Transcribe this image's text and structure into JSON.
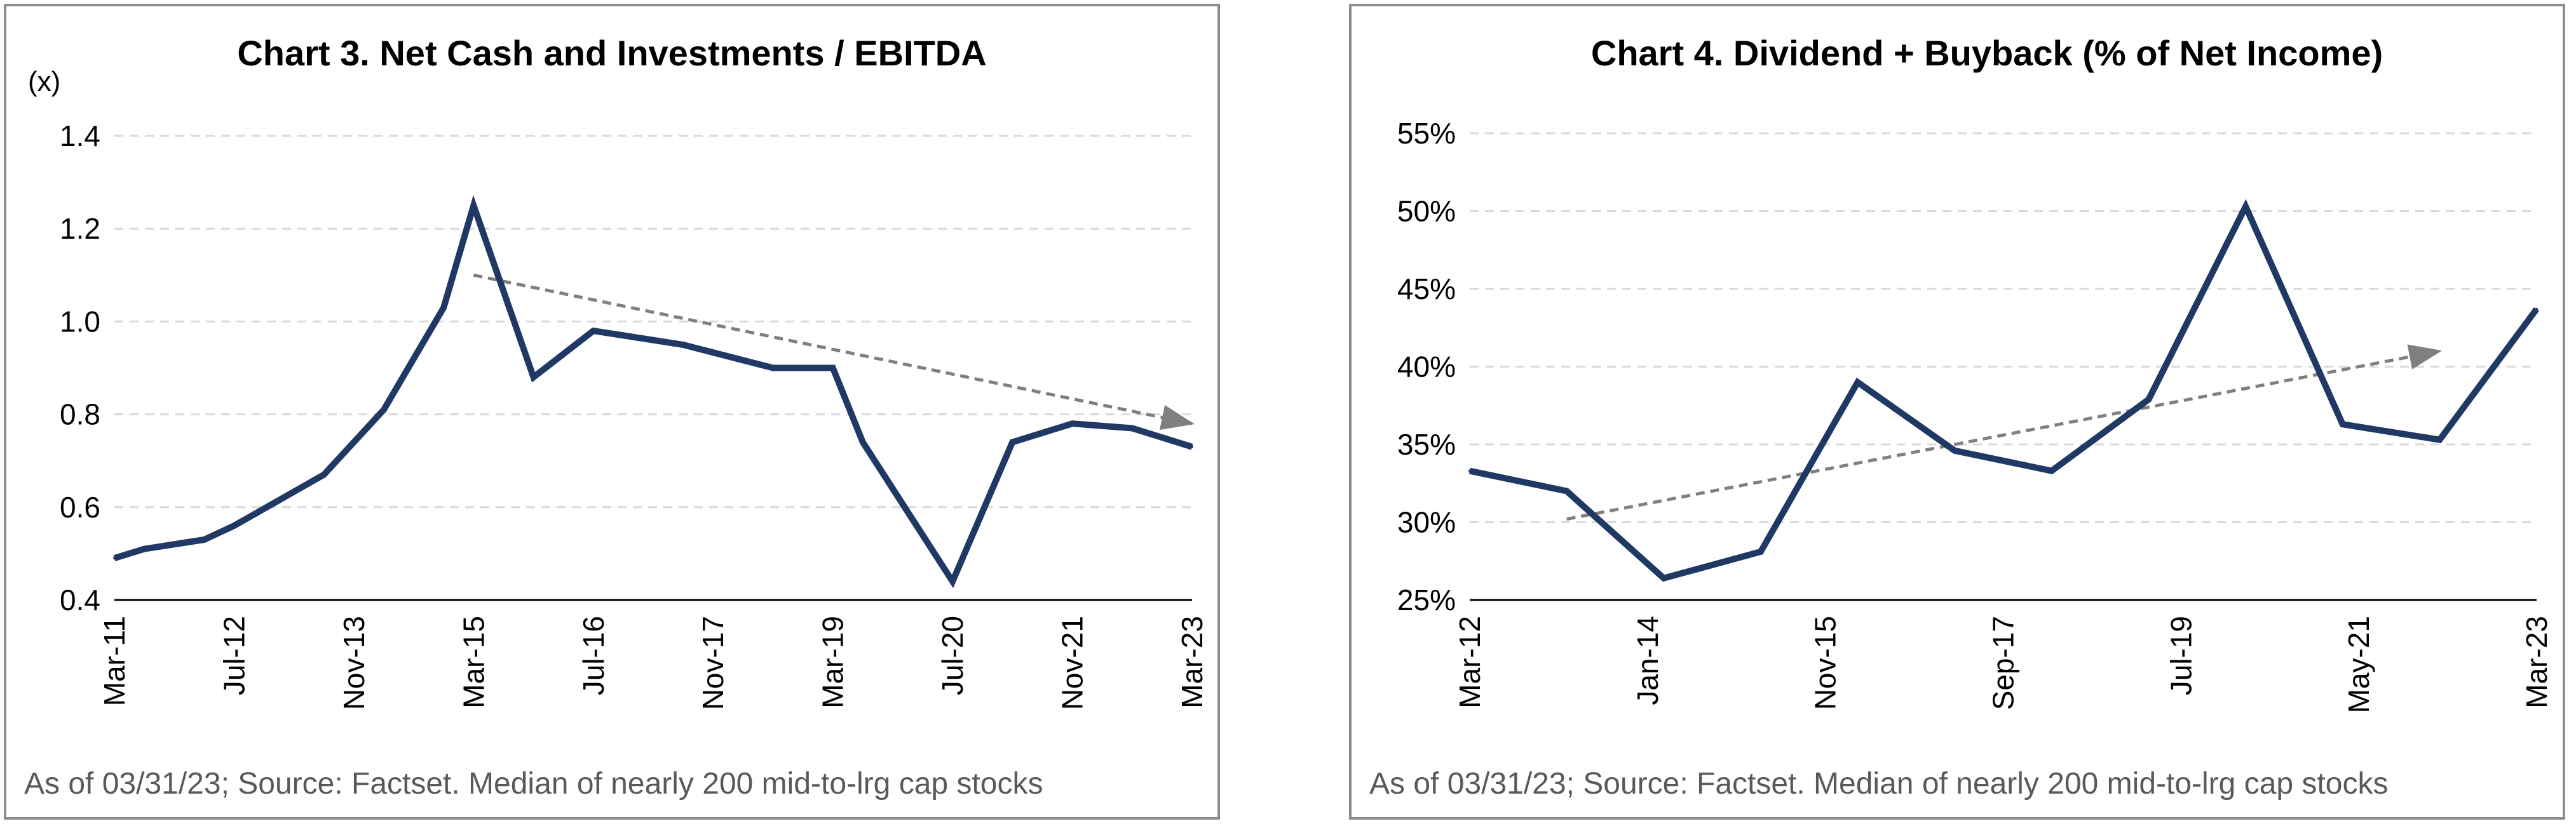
{
  "charts": [
    {
      "title": "Chart 3. Net Cash and Investments / EBITDA",
      "unit_label": "(x)",
      "source": "As of 03/31/23; Source: Factset. Median of nearly 200 mid-to-lrg cap stocks",
      "y_ticks": [
        "1.4",
        "1.2",
        "1.0",
        "0.8",
        "0.6",
        "0.4"
      ],
      "x_ticks": [
        "Mar-11",
        "Jul-12",
        "Nov-13",
        "Mar-15",
        "Jul-16",
        "Nov-17",
        "Mar-19",
        "Jul-20",
        "Nov-21",
        "Mar-23"
      ]
    },
    {
      "title": "Chart 4. Dividend + Buyback (% of Net Income)",
      "source": "As of 03/31/23; Source: Factset. Median of nearly 200 mid-to-lrg cap stocks",
      "y_ticks": [
        "55%",
        "50%",
        "45%",
        "40%",
        "35%",
        "30%",
        "25%"
      ],
      "x_ticks": [
        "Mar-12",
        "Jan-14",
        "Nov-15",
        "Sep-17",
        "Jul-19",
        "May-21",
        "Mar-23"
      ]
    }
  ],
  "chart_data": [
    {
      "type": "line",
      "title": "Chart 3. Net Cash and Investments / EBITDA",
      "ylabel": "(x)",
      "xlabel": "",
      "ylim": [
        0.4,
        1.4
      ],
      "grid": true,
      "line_color": "#1f3864",
      "trend_color": "#7f7f7f",
      "x": [
        "Mar-11",
        "Jul-11",
        "Mar-12",
        "Jul-12",
        "Jul-13",
        "Mar-14",
        "Nov-14",
        "Mar-15",
        "Nov-15",
        "Jul-16",
        "Jul-17",
        "Jul-18",
        "Mar-19",
        "Jul-19",
        "Jul-20",
        "Mar-21",
        "Nov-21",
        "Jul-22",
        "Mar-23"
      ],
      "series": [
        {
          "values": [
            0.49,
            0.51,
            0.53,
            0.56,
            0.67,
            0.81,
            1.03,
            1.25,
            0.88,
            0.98,
            0.95,
            0.9,
            0.9,
            0.74,
            0.44,
            0.74,
            0.78,
            0.77,
            0.73
          ]
        }
      ],
      "trend_line": {
        "x": [
          "Mar-15",
          "Mar-23"
        ],
        "y": [
          1.1,
          0.78
        ]
      },
      "x_tick_labels": [
        "Mar-11",
        "Jul-12",
        "Nov-13",
        "Mar-15",
        "Jul-16",
        "Nov-17",
        "Mar-19",
        "Jul-20",
        "Nov-21",
        "Mar-23"
      ],
      "y_tick_labels": [
        "0.4",
        "0.6",
        "0.8",
        "1.0",
        "1.2",
        "1.4"
      ]
    },
    {
      "type": "line",
      "title": "Chart 4. Dividend + Buyback (% of Net Income)",
      "xlabel": "",
      "ylabel": "",
      "ylim": [
        25,
        55
      ],
      "grid": true,
      "line_color": "#1f3864",
      "trend_color": "#7f7f7f",
      "x": [
        "Mar-12",
        "Mar-13",
        "Mar-14",
        "Mar-15",
        "Mar-16",
        "Mar-17",
        "Mar-18",
        "Mar-19",
        "Mar-20",
        "Mar-21",
        "Mar-22",
        "Mar-23"
      ],
      "series": [
        {
          "values": [
            33.3,
            32.0,
            26.4,
            28.1,
            39.0,
            34.6,
            33.3,
            37.9,
            50.3,
            36.3,
            35.3,
            43.7
          ]
        }
      ],
      "trend_line": {
        "x": [
          "Mar-13",
          "Mar-22"
        ],
        "y": [
          30.2,
          41.0
        ]
      },
      "x_tick_labels": [
        "Mar-12",
        "Jan-14",
        "Nov-15",
        "Sep-17",
        "Jul-19",
        "May-21",
        "Mar-23"
      ],
      "y_tick_labels": [
        "25%",
        "30%",
        "35%",
        "40%",
        "45%",
        "50%",
        "55%"
      ]
    }
  ]
}
